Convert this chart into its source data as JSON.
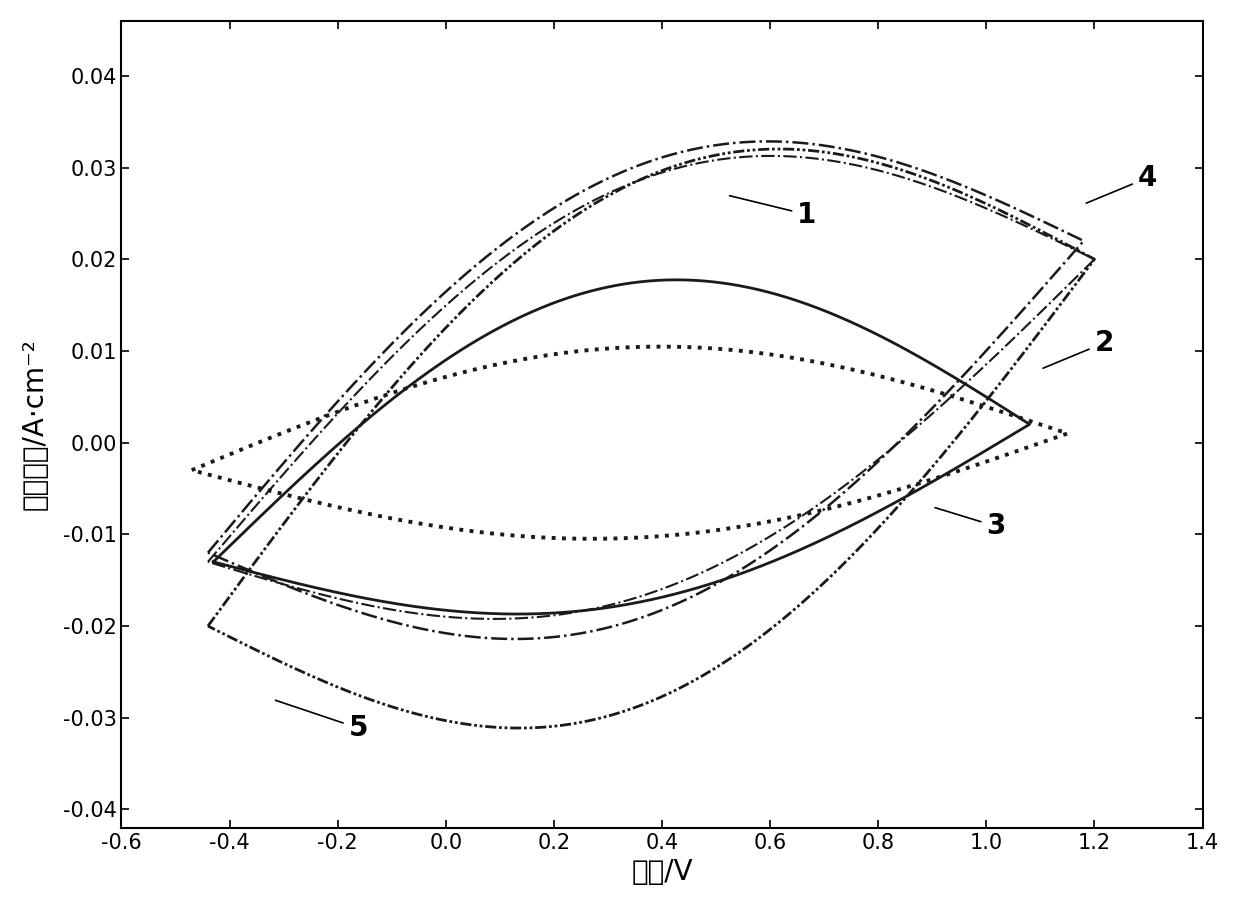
{
  "xlabel": "电位/V",
  "ylabel": "电流密度/A·cm⁻²",
  "xlim": [
    -0.6,
    1.4
  ],
  "ylim": [
    -0.042,
    0.046
  ],
  "xticks": [
    -0.6,
    -0.4,
    -0.2,
    0.0,
    0.2,
    0.4,
    0.6,
    0.8,
    1.0,
    1.2,
    1.4
  ],
  "yticks": [
    -0.04,
    -0.03,
    -0.02,
    -0.01,
    0.0,
    0.01,
    0.02,
    0.03,
    0.04
  ],
  "background_color": "#ffffff",
  "line_color": "#1a1a1a",
  "label_fontsize": 20,
  "tick_fontsize": 15,
  "annotation_fontsize": 20
}
